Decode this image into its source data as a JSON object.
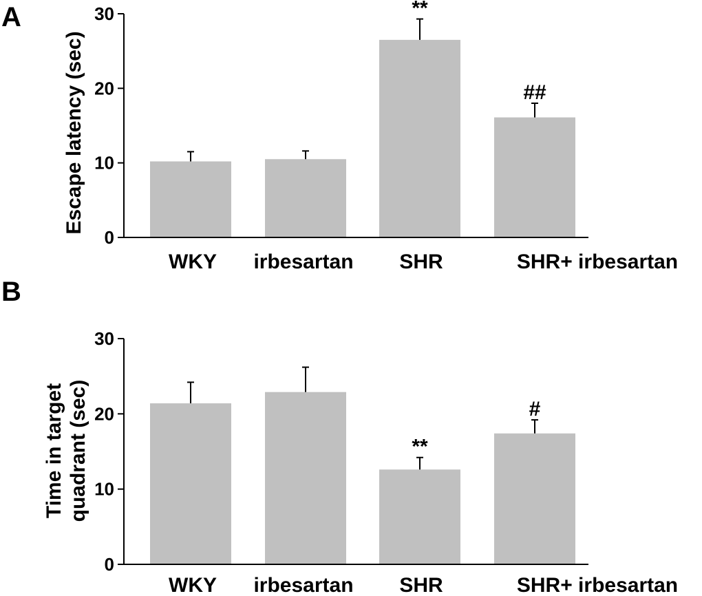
{
  "chart_data": [
    {
      "type": "bar",
      "panel": "A",
      "categories": [
        "WKY",
        "irbesartan",
        "SHR",
        "SHR+ irbesartan"
      ],
      "values": [
        10.2,
        10.5,
        26.5,
        16.1
      ],
      "errors": [
        1.3,
        1.1,
        2.8,
        1.9
      ],
      "significance": [
        "",
        "",
        "**",
        "##"
      ],
      "ylabel": "Escape latency (sec)",
      "ylim": [
        0,
        30
      ],
      "yticks": [
        0,
        10,
        20,
        30
      ]
    },
    {
      "type": "bar",
      "panel": "B",
      "categories": [
        "WKY",
        "irbesartan",
        "SHR",
        "SHR+ irbesartan"
      ],
      "values": [
        21.4,
        22.9,
        12.6,
        17.4
      ],
      "errors": [
        2.8,
        3.3,
        1.6,
        1.8
      ],
      "significance": [
        "",
        "",
        "**",
        "#"
      ],
      "ylabel_lines": [
        "Time in target",
        "quadrant (sec)"
      ],
      "ylim": [
        0,
        30
      ],
      "yticks": [
        0,
        10,
        20,
        30
      ]
    }
  ]
}
